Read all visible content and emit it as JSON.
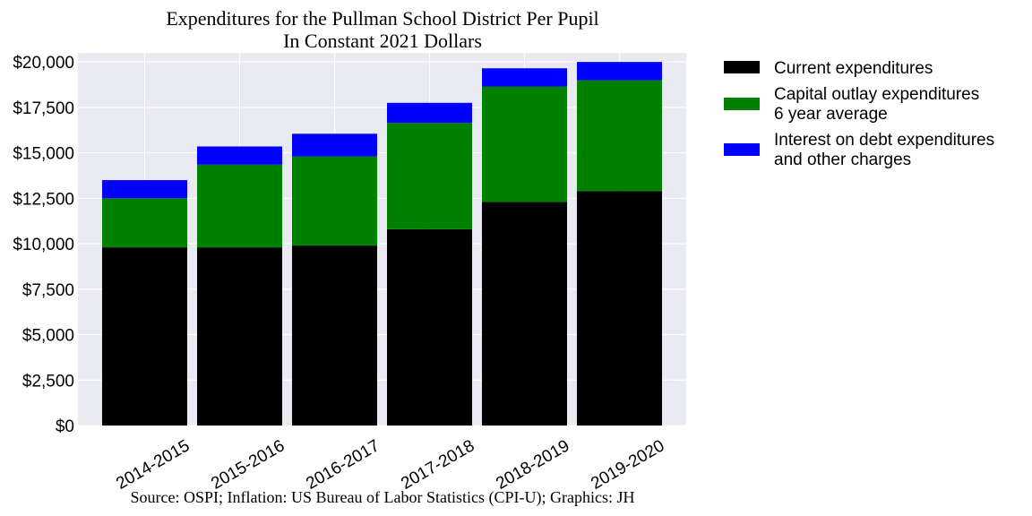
{
  "chart_data": {
    "type": "bar",
    "stacked": true,
    "title": "Expenditures for the Pullman School District Per Pupil",
    "subtitle": "In Constant 2021 Dollars",
    "source": "Source: OSPI; Inflation: US Bureau of Labor Statistics (CPI-U); Graphics: JH",
    "categories": [
      "2014-2015",
      "2015-2016",
      "2016-2017",
      "2017-2018",
      "2018-2019",
      "2019-2020"
    ],
    "series": [
      {
        "name": "Current expenditures",
        "color": "#000000",
        "values": [
          9800,
          9800,
          9900,
          10800,
          12300,
          12900
        ]
      },
      {
        "name": "Capital outlay expenditures\n6 year average",
        "color": "#008000",
        "values": [
          2700,
          4550,
          4900,
          5850,
          6350,
          6100
        ]
      },
      {
        "name": "Interest on debt expenditures\nand other charges",
        "color": "#0000ff",
        "values": [
          1000,
          1000,
          1250,
          1100,
          1000,
          1000
        ]
      }
    ],
    "yticks": [
      "$0",
      "$2,500",
      "$5,000",
      "$7,500",
      "$10,000",
      "$12,500",
      "$15,000",
      "$17,500",
      "$20,000"
    ],
    "ylim": [
      0,
      20500
    ],
    "grid": true,
    "legend": "outside-right"
  }
}
